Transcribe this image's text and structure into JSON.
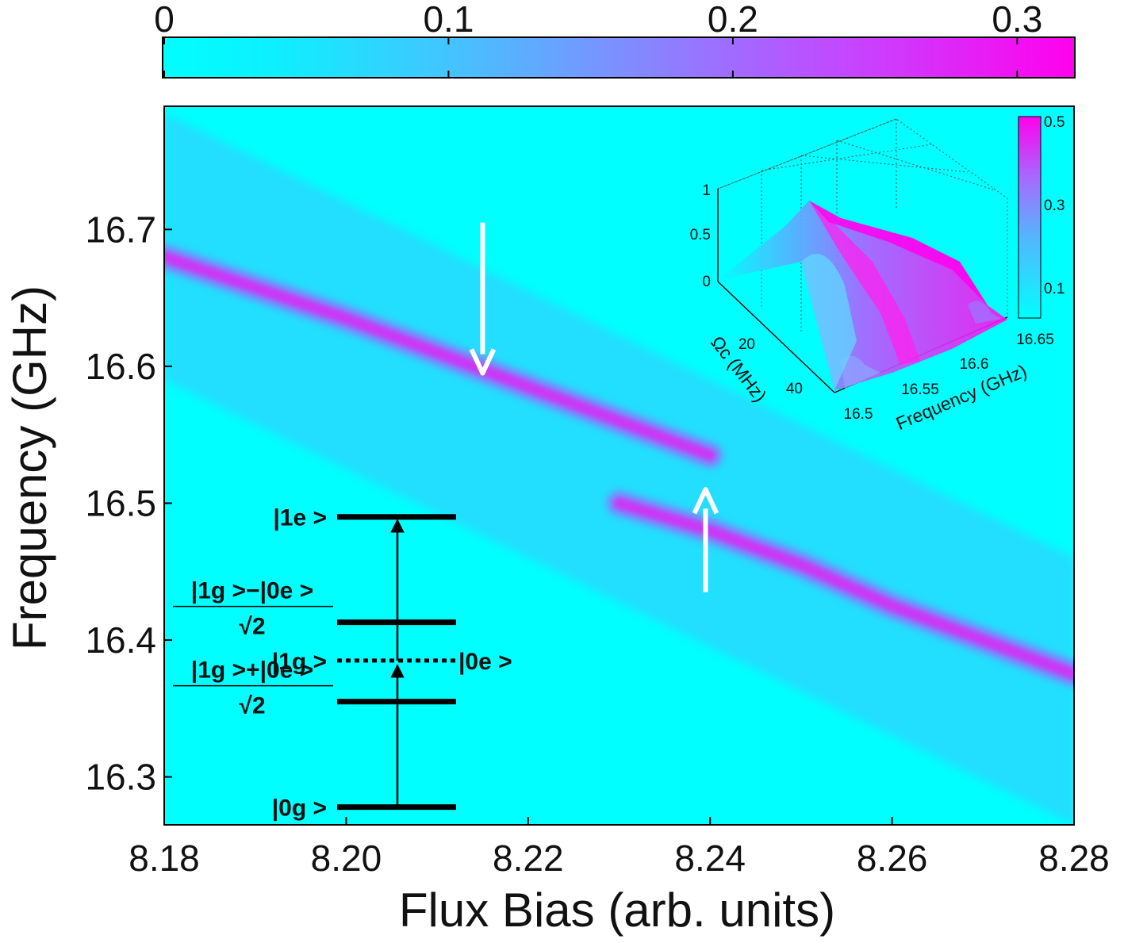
{
  "chart_data": {
    "type": "heatmap",
    "xlabel": "Flux Bias (arb. units)",
    "ylabel": "Frequency (GHz)",
    "xlim": [
      8.18,
      8.28
    ],
    "ylim": [
      16.265,
      16.79
    ],
    "x_ticks": [
      "8.18",
      "8.20",
      "8.22",
      "8.24",
      "8.26",
      "8.28"
    ],
    "y_ticks": [
      "16.3",
      "16.4",
      "16.5",
      "16.6",
      "16.7"
    ],
    "colorbar": {
      "ticks": [
        "0",
        "0.1",
        "0.2",
        "0.3"
      ],
      "range": [
        0,
        0.32
      ],
      "colors": [
        "#00ffff",
        "#ff00ff"
      ]
    },
    "band_edges": {
      "upper": [
        [
          8.18,
          16.785
        ],
        [
          8.28,
          16.46
        ]
      ],
      "lower": [
        [
          8.18,
          16.59
        ],
        [
          8.28,
          16.265
        ]
      ]
    },
    "ridges": [
      {
        "name": "",
        "points": [
          [
            8.18,
            16.68
          ],
          [
            8.2,
            16.635
          ],
          [
            8.22,
            16.585
          ],
          [
            8.23,
            16.56
          ],
          [
            8.24,
            16.535
          ]
        ]
      },
      {
        "name": "",
        "points": [
          [
            8.23,
            16.5
          ],
          [
            8.24,
            16.48
          ],
          [
            8.25,
            16.455
          ],
          [
            8.26,
            16.425
          ],
          [
            8.28,
            16.375
          ]
        ]
      }
    ],
    "arrows": [
      {
        "x": 8.215,
        "from": 16.705,
        "to": 16.595,
        "direction": "down"
      },
      {
        "x": 8.2395,
        "from": 16.435,
        "to": 16.51,
        "direction": "up"
      }
    ],
    "energy_levels": [
      {
        "label": "|1e >",
        "level": 16.49
      },
      {
        "label_top": "|1g >−|0e >",
        "label_bottom": "√2",
        "level": 16.413
      },
      {
        "label": "|1g >",
        "label_right": "|0e >",
        "level": 16.385,
        "dashed": true
      },
      {
        "label_top": "|1g >+|0e >",
        "label_bottom": "√2",
        "level": 16.355
      },
      {
        "label": "|0g >",
        "level": 16.278
      }
    ],
    "inset": {
      "type": "surface",
      "zlabel_ticks": [
        "0",
        "0.5",
        "1"
      ],
      "omega_ticks": [
        "20",
        "40"
      ],
      "omega_label": "Ωc (MHz)",
      "freq_ticks": [
        "16.5",
        "16.55",
        "16.6",
        "16.65"
      ],
      "freq_label": "Frequency (GHz)",
      "colorbar_ticks": [
        "0.1",
        "0.3",
        "0.5"
      ],
      "colorbar_range": [
        0,
        0.5
      ]
    }
  }
}
